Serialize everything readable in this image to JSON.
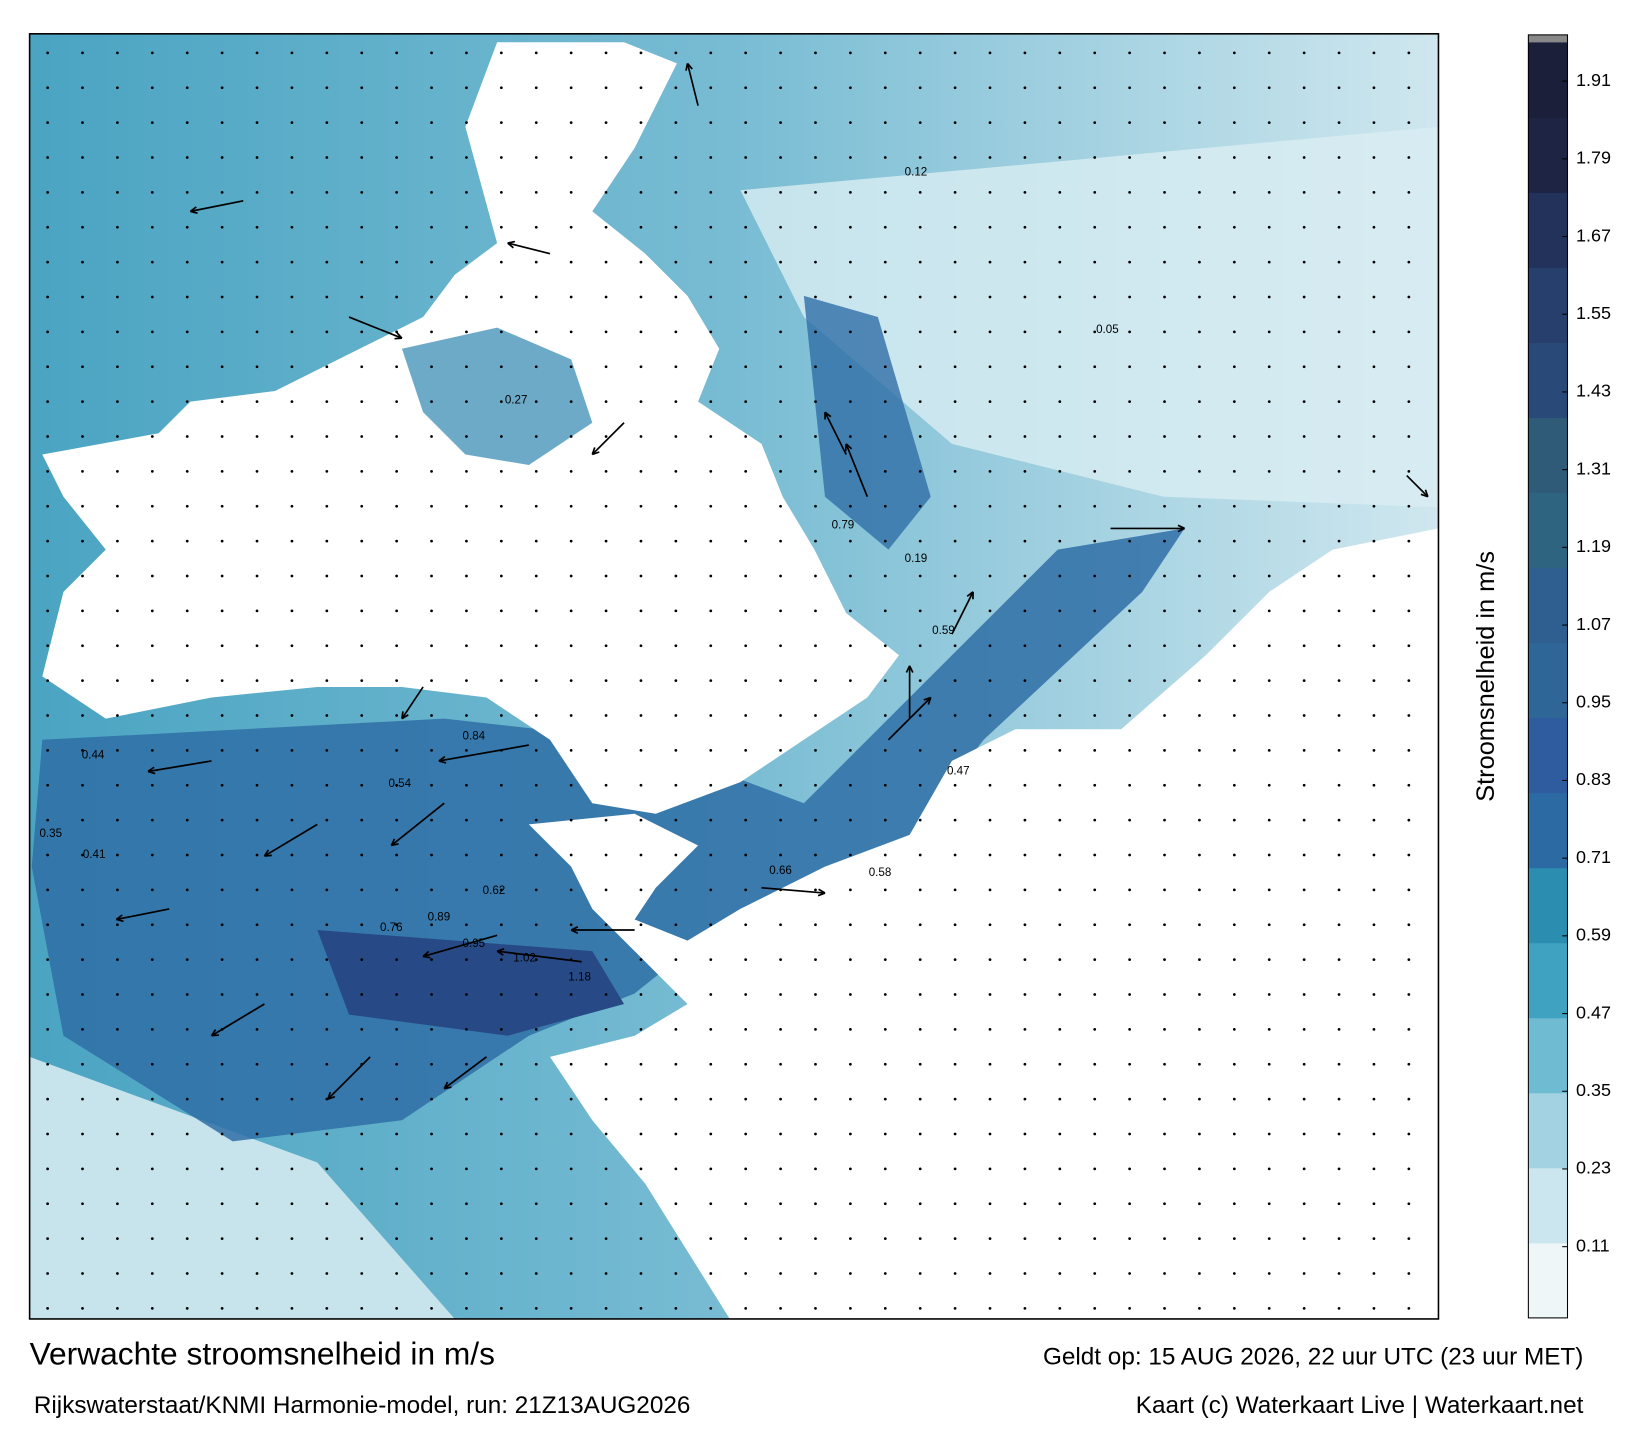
{
  "map": {
    "title": "Verwachte stroomsnelheid in m/s",
    "valid_time": "Geldt op: 15 AUG 2026, 22 uur UTC (23 uur MET)",
    "model": "Rijkswaterstaat/KNMI Harmonie-model, run: 21Z13AUG2026",
    "credit": "Kaart (c) Waterkaart Live | Waterkaart.net",
    "current_labels": [
      "1.18",
      "1.02",
      "0.95",
      "0.89",
      "0.84",
      "0.76",
      "0.62",
      "0.54",
      "0.44",
      "0.41",
      "0.35",
      "0.27",
      "0.19",
      "0.12",
      "0.05",
      "0.66",
      "0.58",
      "0.47",
      "0.59",
      "0.79"
    ],
    "colorbar": {
      "label": "Stroomsnelheid in m/s",
      "lim": [
        0,
        1.97
      ],
      "ticks": [
        0.11,
        0.23,
        0.35,
        0.47,
        0.59,
        0.71,
        0.83,
        0.95,
        1.07,
        1.19,
        1.31,
        1.43,
        1.55,
        1.67,
        1.79,
        1.91
      ],
      "colors": [
        "#eef6f8",
        "#cbe6ee",
        "#a3d3e2",
        "#6fbbd2",
        "#3fa2c0",
        "#2b8db0",
        "#2b6aa2",
        "#2e5c9e",
        "#2f6698",
        "#2e5f90",
        "#2f6480",
        "#2f5a78",
        "#294a78",
        "#263f6c",
        "#22325a",
        "#1d2444",
        "#1b1f3a"
      ]
    }
  }
}
